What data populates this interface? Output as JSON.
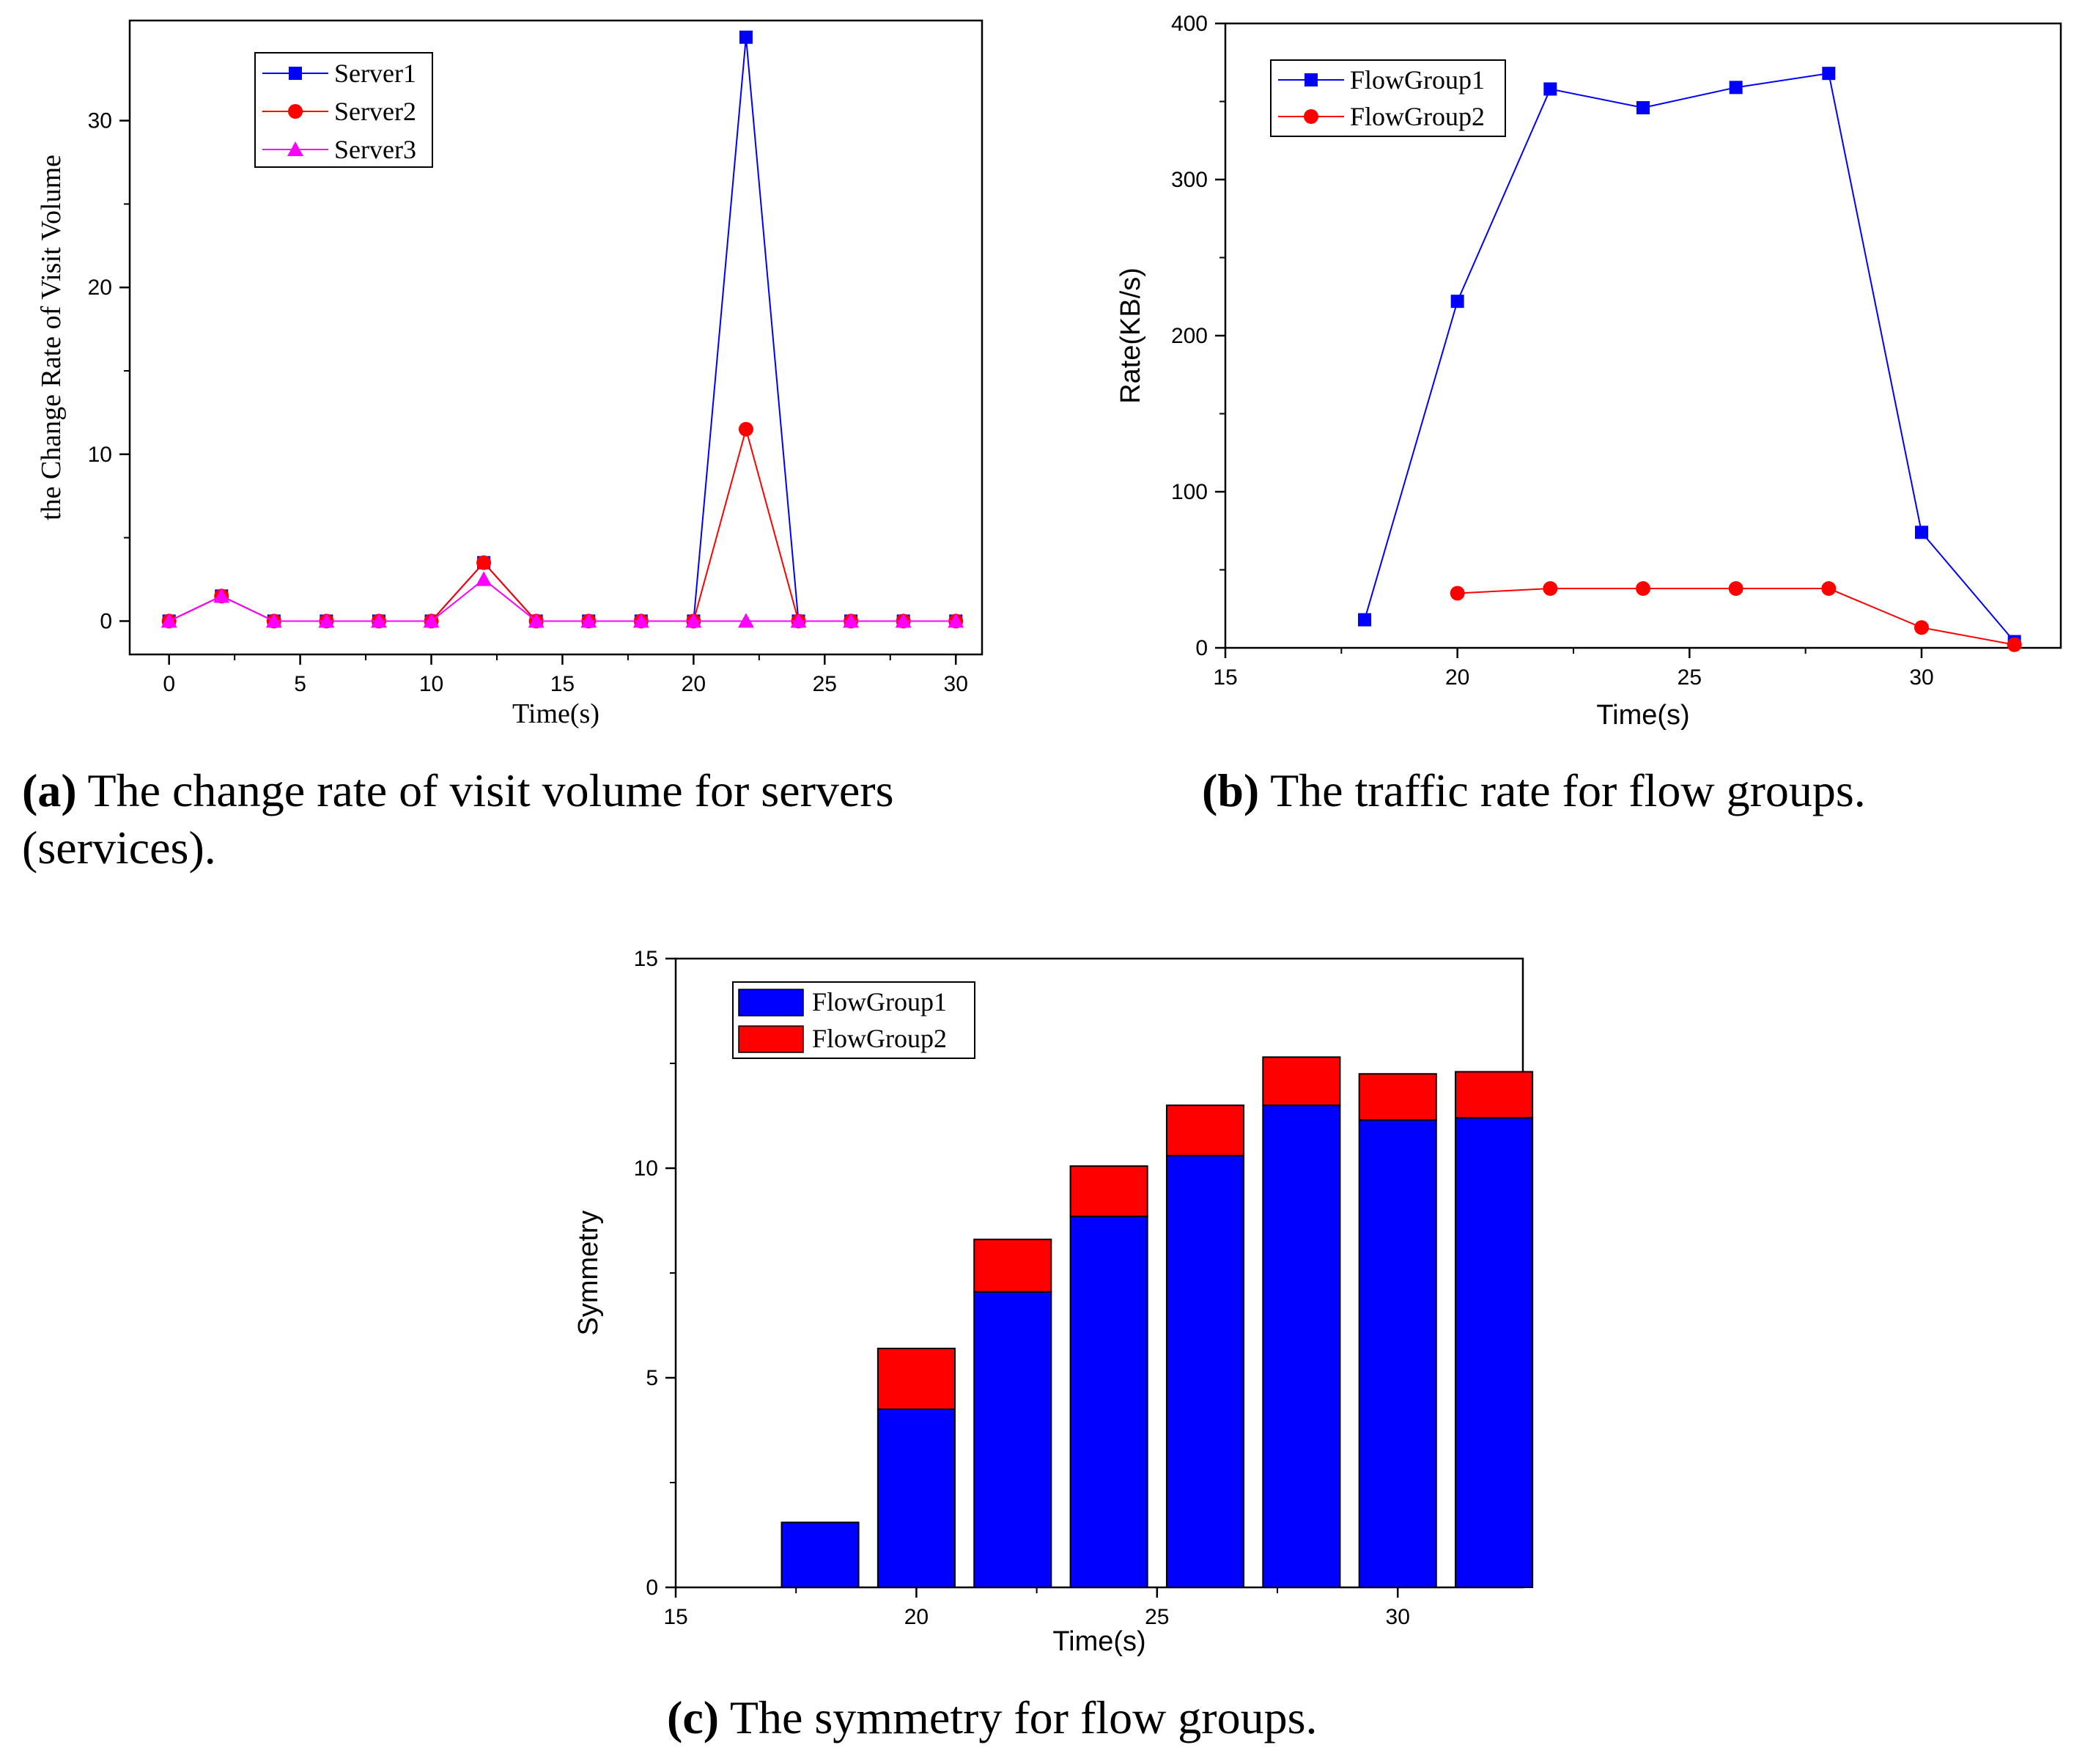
{
  "chart_data": [
    {
      "id": "a",
      "type": "line",
      "xlabel": "Time(s)",
      "ylabel": "the Change Rate of Visit Volume",
      "xlim": [
        -1.5,
        31
      ],
      "ylim": [
        -2,
        36
      ],
      "xticks": [
        0,
        5,
        10,
        15,
        20,
        25,
        30
      ],
      "yticks": [
        0,
        10,
        20,
        30
      ],
      "legend_position": "top-left",
      "caption": {
        "letter": "(a)",
        "text": " The change rate of visit volume for servers",
        "text2": "(services)."
      },
      "series": [
        {
          "name": "Server1",
          "color": "#0000ff",
          "marker": "square",
          "x": [
            0,
            2,
            4,
            6,
            8,
            10,
            12,
            14,
            16,
            18,
            20,
            22,
            24,
            26,
            28,
            30
          ],
          "y": [
            0,
            1.5,
            0,
            0,
            0,
            0,
            3.5,
            0,
            0,
            0,
            0,
            35,
            0,
            0,
            0,
            0
          ]
        },
        {
          "name": "Server2",
          "color": "#ff0000",
          "marker": "circle",
          "x": [
            0,
            2,
            4,
            6,
            8,
            10,
            12,
            14,
            16,
            18,
            20,
            22,
            24,
            26,
            28,
            30
          ],
          "y": [
            0,
            1.5,
            0,
            0,
            0,
            0,
            3.5,
            0,
            0,
            0,
            0,
            11.5,
            0,
            0,
            0,
            0
          ]
        },
        {
          "name": "Server3",
          "color": "#ff00ff",
          "marker": "triangle",
          "x": [
            0,
            2,
            4,
            6,
            8,
            10,
            12,
            14,
            16,
            18,
            20,
            22,
            24,
            26,
            28,
            30
          ],
          "y": [
            0,
            1.5,
            0,
            0,
            0,
            0,
            2.5,
            0,
            0,
            0,
            0,
            0,
            0,
            0,
            0,
            0
          ]
        }
      ]
    },
    {
      "id": "b",
      "type": "line",
      "xlabel": "Time(s)",
      "ylabel": "Rate(KB/s)",
      "xlim": [
        15,
        33
      ],
      "ylim": [
        0,
        400
      ],
      "xticks": [
        15,
        20,
        25,
        30
      ],
      "yticks": [
        0,
        100,
        200,
        300,
        400
      ],
      "legend_position": "top-left",
      "caption": {
        "letter": "(b)",
        "text": " The traffic rate for flow groups."
      },
      "series": [
        {
          "name": "FlowGroup1",
          "color": "#0000ff",
          "marker": "square",
          "x": [
            18,
            20,
            22,
            24,
            26,
            28,
            30,
            32
          ],
          "y": [
            18,
            222,
            358,
            346,
            359,
            368,
            74,
            4
          ]
        },
        {
          "name": "FlowGroup2",
          "color": "#ff0000",
          "marker": "circle",
          "x": [
            20,
            22,
            24,
            26,
            28,
            30,
            32
          ],
          "y": [
            35,
            38,
            38,
            38,
            38,
            13,
            2
          ]
        }
      ]
    },
    {
      "id": "c",
      "type": "bar",
      "stacked": true,
      "xlabel": "Time(s)",
      "ylabel": "Symmetry",
      "xlim": [
        15,
        32.6
      ],
      "ylim": [
        0,
        15
      ],
      "xticks": [
        15,
        20,
        25,
        30
      ],
      "yticks": [
        0,
        5,
        10,
        15
      ],
      "legend_position": "top-left",
      "caption": {
        "letter": "(c)",
        "text": " The symmetry for flow groups."
      },
      "categories": [
        18,
        20,
        22,
        24,
        26,
        28,
        30,
        32
      ],
      "series": [
        {
          "name": "FlowGroup1",
          "color": "#0000ff",
          "values": [
            1.55,
            4.25,
            7.05,
            8.85,
            10.3,
            11.5,
            11.15,
            11.2
          ]
        },
        {
          "name": "FlowGroup2",
          "color": "#ff0000",
          "values": [
            0,
            1.45,
            1.25,
            1.2,
            1.2,
            1.15,
            1.1,
            1.1
          ]
        }
      ]
    }
  ]
}
